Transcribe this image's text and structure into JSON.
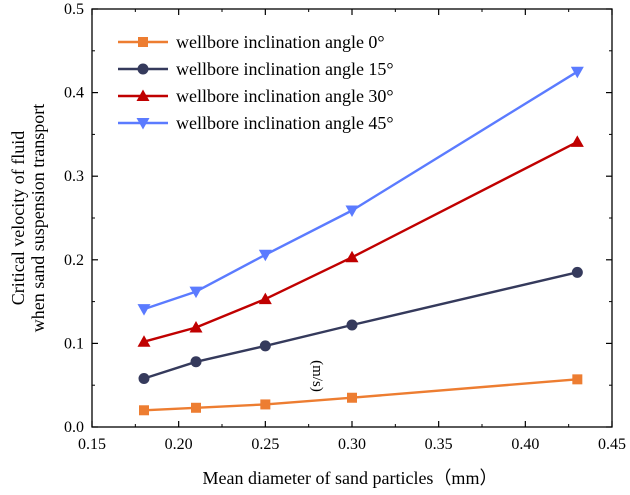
{
  "chart_data": {
    "type": "line",
    "xlabel": "Mean diameter of sand particles（mm）",
    "ylabel_lines": [
      "Critical velocity of fluid",
      "when sand suspension transport"
    ],
    "ylabel_unit": "(m/s)",
    "xlim": [
      0.15,
      0.45
    ],
    "ylim": [
      0,
      0.5
    ],
    "xticks": [
      "0.15",
      "0.20",
      "0.25",
      "0.30",
      "0.35",
      "0.40",
      "0.45"
    ],
    "yticks": [
      "0.0",
      "0.1",
      "0.2",
      "0.3",
      "0.4",
      "0.5"
    ],
    "x": [
      0.18,
      0.21,
      0.25,
      0.3,
      0.43
    ],
    "grid": false,
    "legend_position": "top-left",
    "series": [
      {
        "name": "wellbore inclination angle   0°",
        "color": "#ED7D31",
        "marker": "square",
        "values": [
          0.02,
          0.023,
          0.027,
          0.035,
          0.057
        ]
      },
      {
        "name": "wellbore inclination angle 15°",
        "color": "#353A5C",
        "marker": "circle",
        "values": [
          0.058,
          0.078,
          0.097,
          0.122,
          0.185
        ]
      },
      {
        "name": "wellbore inclination angle 30°",
        "color": "#C00000",
        "marker": "triangle-up",
        "values": [
          0.102,
          0.119,
          0.153,
          0.203,
          0.341
        ]
      },
      {
        "name": "wellbore inclination angle 45°",
        "color": "#5B7BFF",
        "marker": "triangle-down",
        "values": [
          0.141,
          0.162,
          0.206,
          0.259,
          0.425
        ]
      }
    ]
  }
}
